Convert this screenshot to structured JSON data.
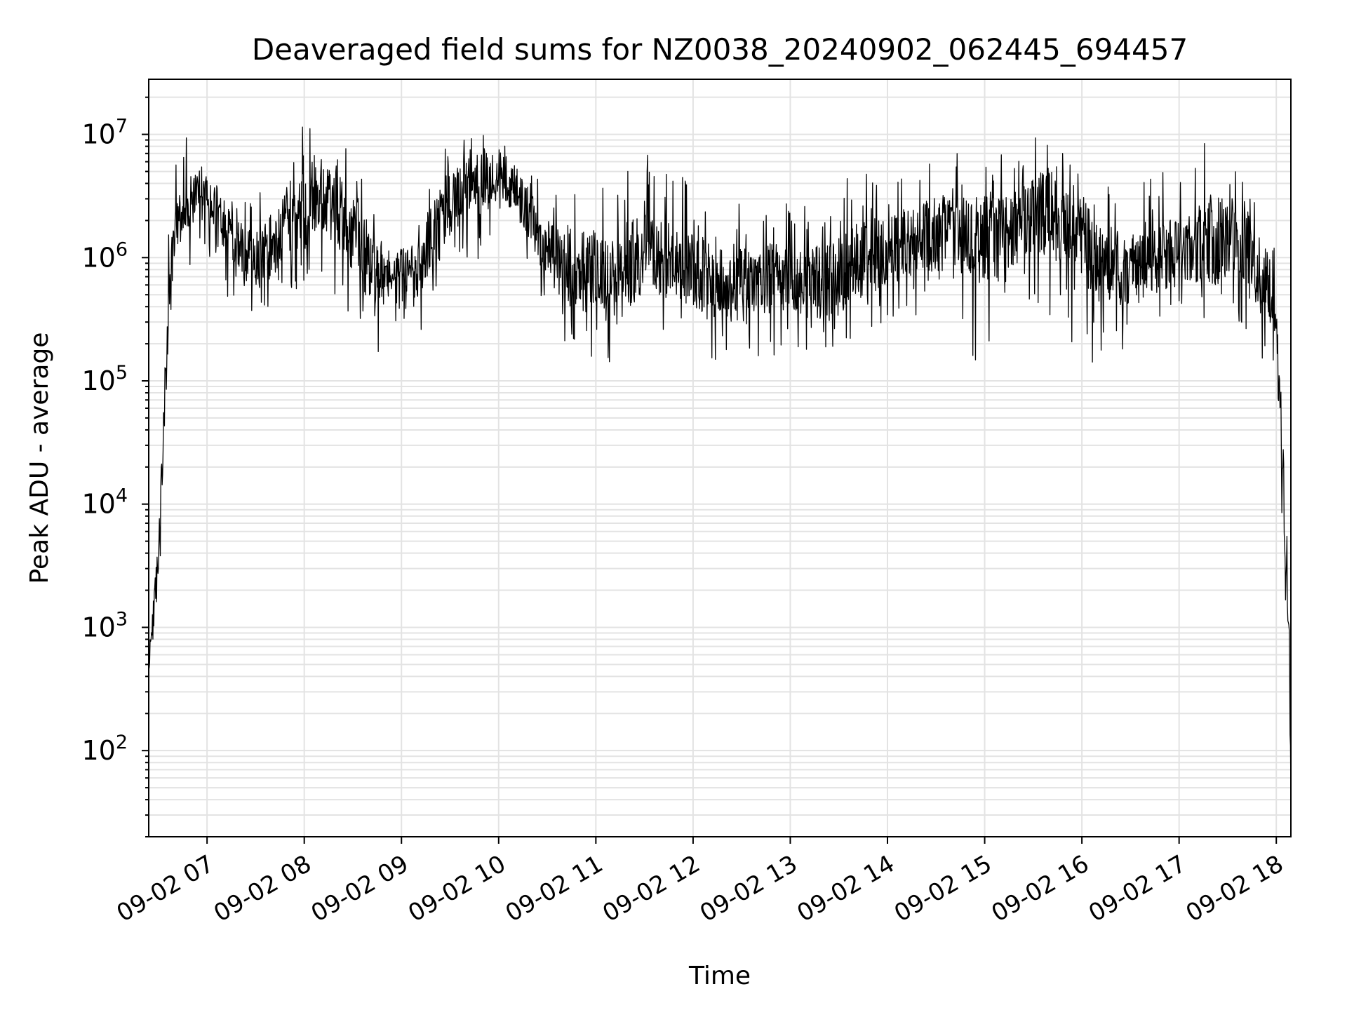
{
  "chart_data": {
    "type": "line",
    "title": "Deaveraged field sums for NZ0038_20240902_062445_694457",
    "xlabel": "Time",
    "ylabel": "Peak ADU - average",
    "yscale": "log",
    "ylim": [
      20,
      28000000
    ],
    "xlim": [
      "2024-09-02 06:24",
      "2024-09-02 18:09"
    ],
    "grid": true,
    "line_color": "#000000",
    "grid_color": "#e3e3e3",
    "x_tick_labels": [
      "09-02 07",
      "09-02 08",
      "09-02 09",
      "09-02 10",
      "09-02 11",
      "09-02 12",
      "09-02 13",
      "09-02 14",
      "09-02 15",
      "09-02 16",
      "09-02 17",
      "09-02 18"
    ],
    "x_ticks": [
      "2024-09-02 07:00",
      "2024-09-02 08:00",
      "2024-09-02 09:00",
      "2024-09-02 10:00",
      "2024-09-02 11:00",
      "2024-09-02 12:00",
      "2024-09-02 13:00",
      "2024-09-02 14:00",
      "2024-09-02 15:00",
      "2024-09-02 16:00",
      "2024-09-02 17:00",
      "2024-09-02 18:00"
    ],
    "y_ticks": [
      {
        "value": 100,
        "base": "10",
        "exp": "2"
      },
      {
        "value": 1000,
        "base": "10",
        "exp": "3"
      },
      {
        "value": 10000,
        "base": "10",
        "exp": "4"
      },
      {
        "value": 100000,
        "base": "10",
        "exp": "5"
      },
      {
        "value": 1000000,
        "base": "10",
        "exp": "6"
      },
      {
        "value": 10000000,
        "base": "10",
        "exp": "7"
      }
    ],
    "series": [
      {
        "x": [
          "2024-09-02 06:24",
          "2024-09-02 06:26",
          "2024-09-02 06:28",
          "2024-09-02 06:30",
          "2024-09-02 06:32",
          "2024-09-02 06:34",
          "2024-09-02 06:36",
          "2024-09-02 06:38",
          "2024-09-02 06:40",
          "2024-09-02 06:45",
          "2024-09-02 06:50",
          "2024-09-02 06:55",
          "2024-09-02 07:00",
          "2024-09-02 07:10",
          "2024-09-02 07:20",
          "2024-09-02 07:30",
          "2024-09-02 07:40",
          "2024-09-02 07:50",
          "2024-09-02 08:00",
          "2024-09-02 08:10",
          "2024-09-02 08:20",
          "2024-09-02 08:30",
          "2024-09-02 08:40",
          "2024-09-02 08:50",
          "2024-09-02 09:00",
          "2024-09-02 09:10",
          "2024-09-02 09:20",
          "2024-09-02 09:30",
          "2024-09-02 09:40",
          "2024-09-02 09:50",
          "2024-09-02 10:00",
          "2024-09-02 10:10",
          "2024-09-02 10:20",
          "2024-09-02 10:30",
          "2024-09-02 10:40",
          "2024-09-02 10:50",
          "2024-09-02 11:00",
          "2024-09-02 11:10",
          "2024-09-02 11:20",
          "2024-09-02 11:30",
          "2024-09-02 11:40",
          "2024-09-02 11:50",
          "2024-09-02 12:00",
          "2024-09-02 12:10",
          "2024-09-02 12:20",
          "2024-09-02 12:30",
          "2024-09-02 12:40",
          "2024-09-02 12:50",
          "2024-09-02 13:00",
          "2024-09-02 13:10",
          "2024-09-02 13:20",
          "2024-09-02 13:30",
          "2024-09-02 13:40",
          "2024-09-02 13:50",
          "2024-09-02 14:00",
          "2024-09-02 14:10",
          "2024-09-02 14:20",
          "2024-09-02 14:30",
          "2024-09-02 14:40",
          "2024-09-02 14:50",
          "2024-09-02 15:00",
          "2024-09-02 15:10",
          "2024-09-02 15:20",
          "2024-09-02 15:30",
          "2024-09-02 15:40",
          "2024-09-02 15:50",
          "2024-09-02 16:00",
          "2024-09-02 16:10",
          "2024-09-02 16:20",
          "2024-09-02 16:30",
          "2024-09-02 16:40",
          "2024-09-02 16:50",
          "2024-09-02 17:00",
          "2024-09-02 17:10",
          "2024-09-02 17:20",
          "2024-09-02 17:30",
          "2024-09-02 17:40",
          "2024-09-02 17:50",
          "2024-09-02 18:00",
          "2024-09-02 18:02",
          "2024-09-02 18:04",
          "2024-09-02 18:06",
          "2024-09-02 18:08",
          "2024-09-02 18:09"
        ],
        "center": [
          500,
          1000,
          2000,
          4000,
          15000,
          90000,
          300000,
          800000,
          1500000,
          2500000,
          3000000,
          4000000,
          3500000,
          2000000,
          1200000,
          900000,
          1200000,
          2000000,
          2500000,
          3000000,
          2500000,
          1500000,
          800000,
          600000,
          700000,
          900000,
          1500000,
          2500000,
          3500000,
          4500000,
          5000000,
          3500000,
          2000000,
          1200000,
          900000,
          800000,
          900000,
          600000,
          900000,
          1100000,
          1000000,
          900000,
          800000,
          700000,
          600000,
          600000,
          650000,
          700000,
          650000,
          600000,
          650000,
          700000,
          900000,
          1000000,
          1100000,
          1300000,
          1500000,
          1500000,
          1700000,
          1600000,
          1500000,
          1500000,
          1700000,
          2200000,
          2500000,
          2000000,
          1500000,
          1000000,
          800000,
          800000,
          900000,
          1000000,
          1100000,
          1200000,
          1400000,
          1500000,
          1300000,
          800000,
          400000,
          100000,
          20000,
          3000,
          800,
          40
        ],
        "upper": [
          900,
          1800,
          3500,
          8000,
          50000,
          250000,
          1500000,
          5000000,
          8000000,
          12000000,
          7000000,
          6000000,
          5000000,
          4000000,
          3000000,
          5000000,
          7000000,
          10000000,
          13000000,
          10000000,
          9000000,
          7000000,
          3000000,
          2000000,
          2000000,
          4000000,
          6000000,
          10000000,
          12000000,
          12000000,
          11000000,
          7000000,
          5000000,
          4000000,
          5000000,
          5500000,
          5000000,
          4500000,
          6000000,
          7000000,
          6000000,
          5000000,
          4000000,
          3500000,
          3000000,
          3500000,
          3000000,
          3500000,
          3000000,
          3000000,
          4500000,
          5000000,
          6000000,
          5500000,
          5000000,
          6000000,
          7000000,
          6500000,
          8000000,
          7000000,
          6000000,
          7000000,
          8000000,
          10000000,
          14000000,
          9000000,
          6000000,
          5000000,
          4000000,
          4000000,
          4500000,
          5000000,
          5000000,
          6000000,
          15000000,
          7000000,
          6000000,
          3000000,
          1200000,
          300000,
          80000,
          10000,
          2000,
          500
        ],
        "lower": [
          400,
          600,
          1000,
          2000,
          5000,
          30000,
          80000,
          300000,
          700000,
          1000000,
          800000,
          900000,
          1000000,
          500000,
          300000,
          300000,
          400000,
          500000,
          600000,
          500000,
          400000,
          300000,
          150000,
          150000,
          200000,
          250000,
          300000,
          500000,
          800000,
          1000000,
          1500000,
          800000,
          500000,
          300000,
          200000,
          150000,
          150000,
          80000,
          150000,
          250000,
          250000,
          200000,
          150000,
          150000,
          130000,
          150000,
          150000,
          150000,
          150000,
          140000,
          150000,
          180000,
          200000,
          220000,
          250000,
          300000,
          350000,
          350000,
          250000,
          150000,
          130000,
          200000,
          300000,
          350000,
          250000,
          200000,
          150000,
          130000,
          150000,
          200000,
          250000,
          300000,
          300000,
          350000,
          300000,
          250000,
          200000,
          150000,
          100000,
          20000,
          3000,
          500,
          300,
          30
        ]
      }
    ]
  }
}
